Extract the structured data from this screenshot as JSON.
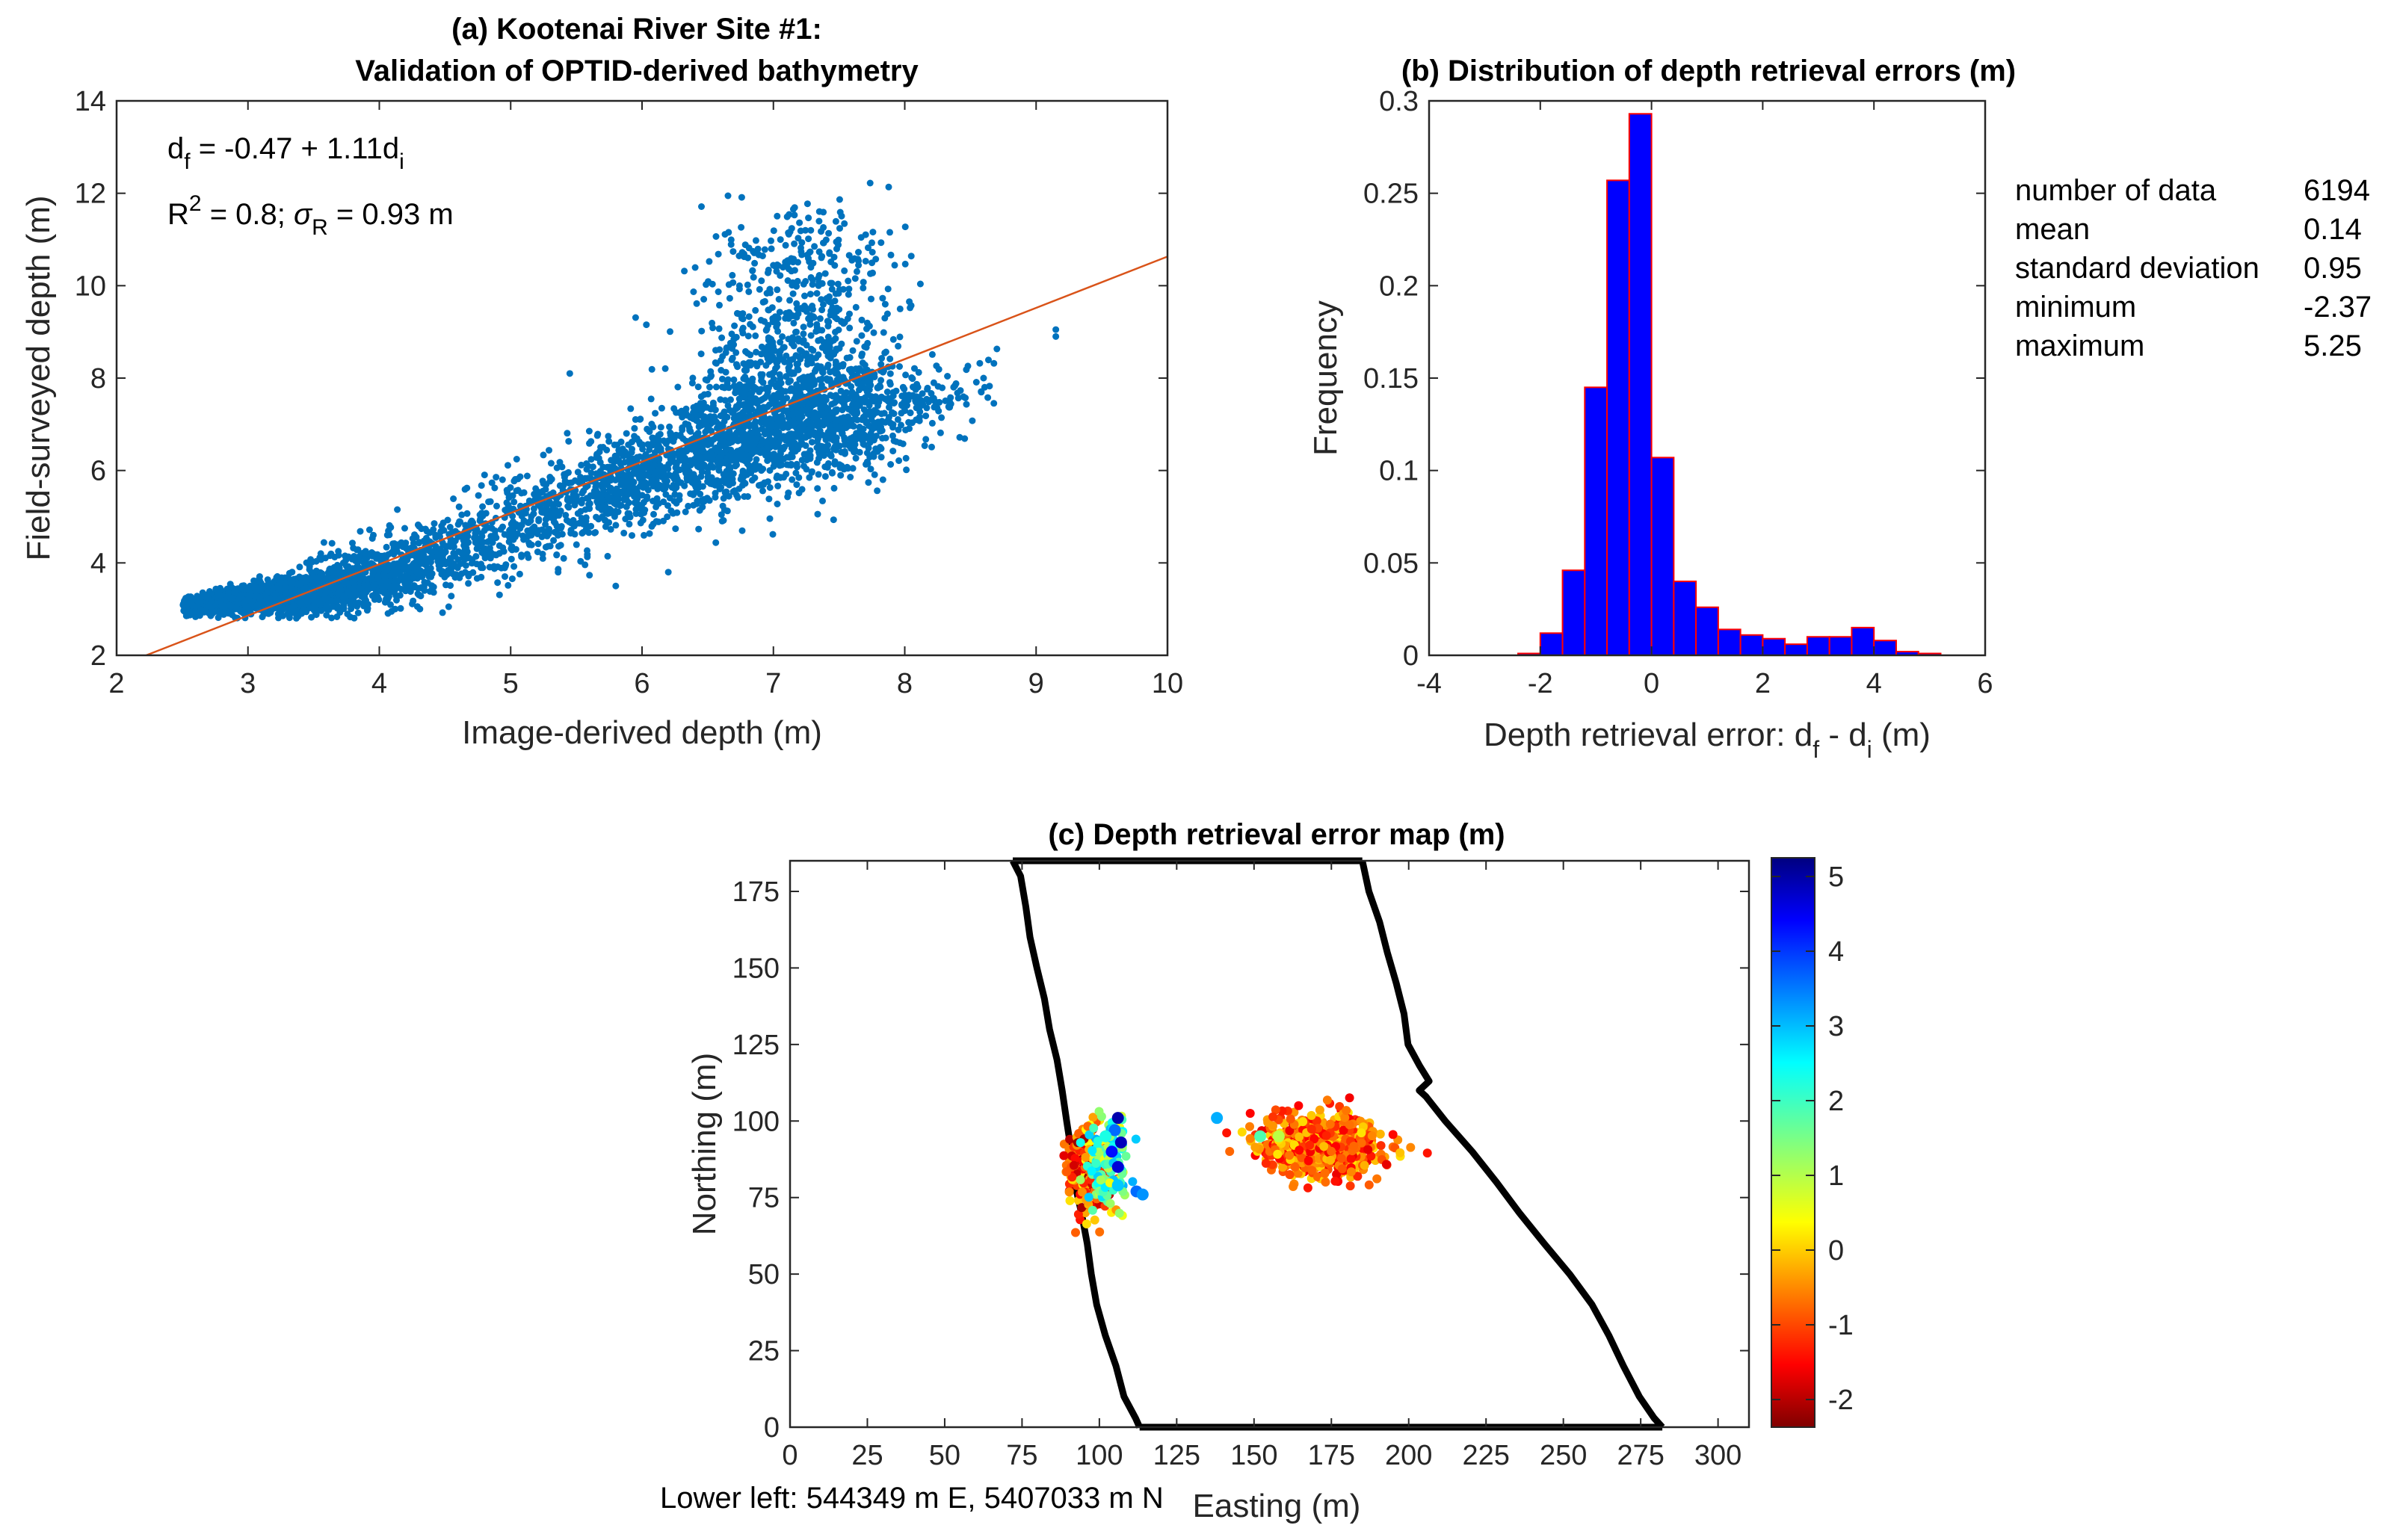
{
  "chart_data": [
    {
      "id": "a",
      "type": "scatter",
      "title": "(a) Kootenai River Site #1:",
      "subtitle": "Validation of OPTID-derived bathymetry",
      "xlabel": "Image-derived depth (m)",
      "ylabel": "Field-surveyed depth (m)",
      "xlim": [
        2,
        10
      ],
      "ylim": [
        2,
        14
      ],
      "xticks": [
        2,
        3,
        4,
        5,
        6,
        7,
        8,
        9,
        10
      ],
      "yticks": [
        2,
        4,
        6,
        8,
        10,
        12,
        14
      ],
      "point_color": "#0072BD",
      "fit_line": {
        "intercept": -0.47,
        "slope": 1.11,
        "color": "#D95319"
      },
      "equation": {
        "lhs": "d",
        "lhs_sub": "f",
        "rhs": " = -0.47 + 1.11d",
        "rhs_sub": "i"
      },
      "r2": {
        "r": "R",
        "sup": "2",
        "eq": " = 0.8; ",
        "sigma": "σ",
        "sigma_sub": "R",
        "tail": " = 0.93 m"
      },
      "clusters": [
        {
          "cx": 2.9,
          "cy": 3.2,
          "sx": 0.28,
          "sy": 0.14,
          "n": 650
        },
        {
          "cx": 3.4,
          "cy": 3.3,
          "sx": 0.3,
          "sy": 0.22,
          "n": 700
        },
        {
          "cx": 3.9,
          "cy": 3.7,
          "sx": 0.28,
          "sy": 0.35,
          "n": 450
        },
        {
          "cx": 4.5,
          "cy": 4.2,
          "sx": 0.32,
          "sy": 0.4,
          "n": 300
        },
        {
          "cx": 5.2,
          "cy": 5.0,
          "sx": 0.35,
          "sy": 0.55,
          "n": 300
        },
        {
          "cx": 5.9,
          "cy": 5.8,
          "sx": 0.3,
          "sy": 0.5,
          "n": 380
        },
        {
          "cx": 6.5,
          "cy": 6.3,
          "sx": 0.3,
          "sy": 0.55,
          "n": 450
        },
        {
          "cx": 7.1,
          "cy": 6.9,
          "sx": 0.35,
          "sy": 0.6,
          "n": 600
        },
        {
          "cx": 7.6,
          "cy": 7.2,
          "sx": 0.32,
          "sy": 0.6,
          "n": 400
        },
        {
          "cx": 7.1,
          "cy": 8.4,
          "sx": 0.35,
          "sy": 0.6,
          "n": 320
        },
        {
          "cx": 7.2,
          "cy": 9.8,
          "sx": 0.4,
          "sy": 0.8,
          "n": 220
        },
        {
          "cx": 7.2,
          "cy": 11.0,
          "sx": 0.3,
          "sy": 0.5,
          "n": 80
        },
        {
          "cx": 8.3,
          "cy": 7.6,
          "sx": 0.2,
          "sy": 0.4,
          "n": 60
        }
      ],
      "extra_points": [
        [
          9.15,
          8.9
        ],
        [
          9.15,
          9.05
        ],
        [
          5.45,
          8.1
        ],
        [
          5.8,
          3.5
        ],
        [
          6.2,
          3.8
        ],
        [
          8.6,
          8.0
        ]
      ]
    },
    {
      "id": "b",
      "type": "bar",
      "title": "(b) Distribution of depth retrieval errors (m)",
      "xlabel_main": "Depth retrieval error: d",
      "xlabel_sub1": "f",
      "xlabel_mid": " - d",
      "xlabel_sub2": "i",
      "xlabel_tail": " (m)",
      "ylabel": "Frequency",
      "xlim": [
        -4,
        6
      ],
      "ylim": [
        0,
        0.3
      ],
      "xticks": [
        -4,
        -2,
        0,
        2,
        4,
        6
      ],
      "yticks": [
        0,
        0.05,
        0.1,
        0.15,
        0.2,
        0.25,
        0.3
      ],
      "ytick_labels": [
        "0",
        "0.05",
        "0.1",
        "0.15",
        "0.2",
        "0.25",
        "0.3"
      ],
      "bin_edges": [
        -2.4,
        -2.0,
        -1.6,
        -1.2,
        -0.8,
        -0.4,
        0.0,
        0.4,
        0.8,
        1.2,
        1.6,
        2.0,
        2.4,
        2.8,
        3.2,
        3.6,
        4.0,
        4.4,
        4.8,
        5.2
      ],
      "values": [
        0.001,
        0.012,
        0.046,
        0.145,
        0.257,
        0.293,
        0.107,
        0.04,
        0.026,
        0.014,
        0.011,
        0.009,
        0.006,
        0.01,
        0.01,
        0.015,
        0.008,
        0.002,
        0.001
      ],
      "bar_fill": "#0000FF",
      "bar_edge": "#FF0000",
      "stats": [
        {
          "label": "number of data",
          "value": "6194"
        },
        {
          "label": "mean",
          "value": "0.14"
        },
        {
          "label": "standard deviation",
          "value": "0.95"
        },
        {
          "label": "minimum",
          "value": "-2.37"
        },
        {
          "label": "maximum",
          "value": "5.25"
        }
      ]
    },
    {
      "id": "c",
      "type": "scatter",
      "title": "(c) Depth retrieval error map (m)",
      "xlabel": "Easting (m)",
      "ylabel": "Northing (m)",
      "xlim": [
        0,
        310
      ],
      "ylim": [
        0,
        185
      ],
      "xticks": [
        0,
        25,
        50,
        75,
        100,
        125,
        150,
        175,
        200,
        225,
        250,
        275,
        300
      ],
      "yticks": [
        0,
        25,
        50,
        75,
        100,
        125,
        150,
        175
      ],
      "colorbar": {
        "min": -2.37,
        "max": 5.25,
        "ticks": [
          -2,
          -1,
          0,
          1,
          2,
          3,
          4,
          5
        ],
        "colormap": "jet"
      },
      "note": "Lower left: 544349 m E, 5407033 m N",
      "left_bank": [
        [
          72,
          185
        ],
        [
          74,
          180
        ],
        [
          76,
          170
        ],
        [
          78,
          160
        ],
        [
          80,
          150
        ],
        [
          82,
          140
        ],
        [
          84,
          130
        ],
        [
          86,
          120
        ],
        [
          88,
          110
        ],
        [
          90,
          100
        ],
        [
          91,
          90
        ],
        [
          92,
          80
        ],
        [
          94,
          70
        ],
        [
          96,
          60
        ],
        [
          97,
          50
        ],
        [
          99,
          40
        ],
        [
          102,
          30
        ],
        [
          105,
          20
        ],
        [
          108,
          10
        ],
        [
          112,
          3
        ],
        [
          113,
          0
        ]
      ],
      "right_bank": [
        [
          185,
          185
        ],
        [
          187,
          175
        ],
        [
          190,
          165
        ],
        [
          193,
          155
        ],
        [
          196,
          145
        ],
        [
          198,
          135
        ],
        [
          200,
          125
        ],
        [
          203,
          118
        ],
        [
          207,
          113
        ],
        [
          203,
          110
        ],
        [
          206,
          108
        ],
        [
          212,
          100
        ],
        [
          220,
          90
        ],
        [
          228,
          80
        ],
        [
          236,
          70
        ],
        [
          244,
          60
        ],
        [
          252,
          50
        ],
        [
          259,
          40
        ],
        [
          265,
          30
        ],
        [
          270,
          20
        ],
        [
          275,
          10
        ],
        [
          279,
          3
        ],
        [
          282,
          0
        ]
      ],
      "bottom_edge": [
        [
          113,
          0
        ],
        [
          282,
          0
        ]
      ],
      "top_edge": [
        [
          72,
          185
        ],
        [
          185,
          185
        ]
      ],
      "clusters": [
        {
          "cx": 97,
          "cy": 85,
          "sx": 3.5,
          "sy": 7,
          "n": 260,
          "vmin": -2.2,
          "vmax": 0.5
        },
        {
          "cx": 103,
          "cy": 86,
          "sx": 3,
          "sy": 8,
          "n": 120,
          "vmin": 0.5,
          "vmax": 3.0
        },
        {
          "cx": 172,
          "cy": 92,
          "sx": 9,
          "sy": 4.5,
          "n": 900,
          "vmin": -1.6,
          "vmax": 0.3
        }
      ],
      "extra_points": [
        [
          106,
          101,
          4.9
        ],
        [
          107,
          93,
          4.8
        ],
        [
          106,
          85,
          4.6
        ],
        [
          104,
          90,
          4.2
        ],
        [
          105,
          97,
          3.5
        ],
        [
          112,
          77,
          3.5
        ],
        [
          114,
          76,
          3.2
        ],
        [
          138,
          101,
          3.0
        ],
        [
          152,
          95,
          1.8
        ],
        [
          158,
          95,
          1.0
        ],
        [
          106,
          79,
          2.8
        ],
        [
          102,
          95,
          2.2
        ]
      ]
    }
  ]
}
